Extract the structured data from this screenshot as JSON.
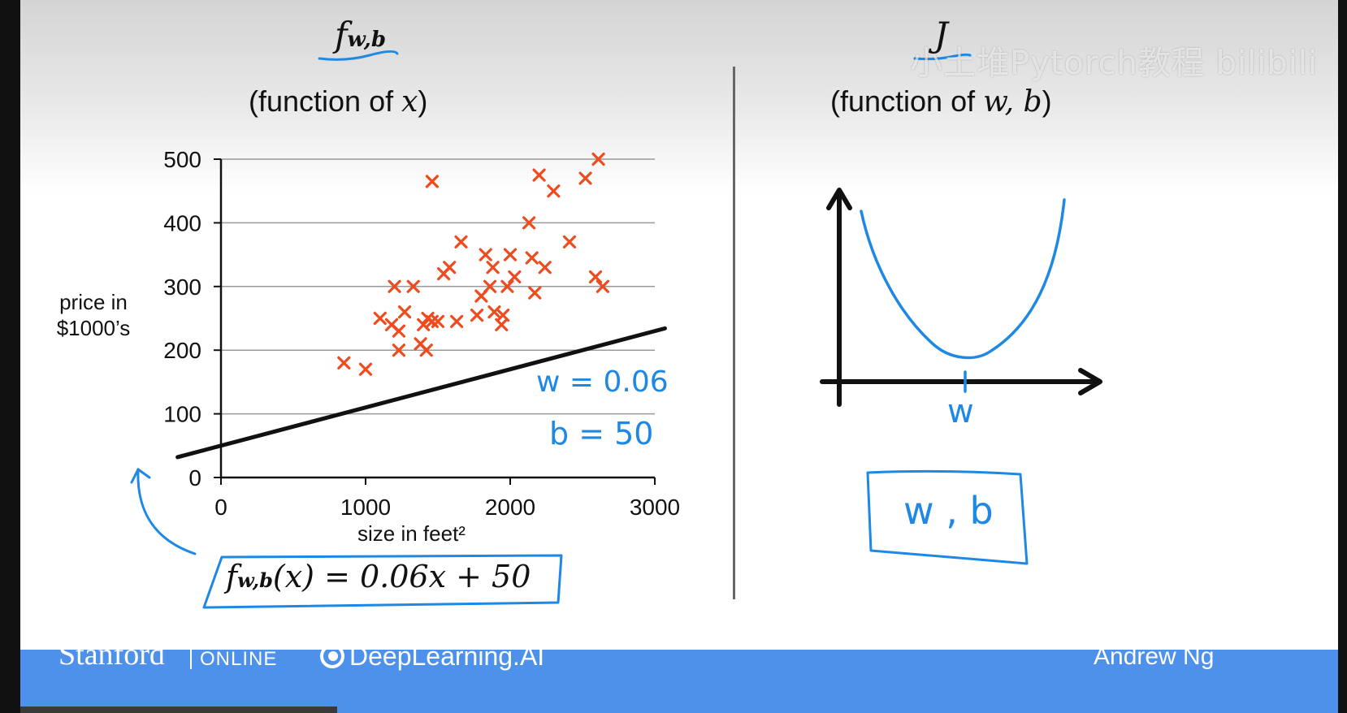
{
  "left_panel": {
    "symbol": "f",
    "symbol_sub": "w,b",
    "subtitle_prefix": "(function of ",
    "subtitle_var": "x",
    "subtitle_suffix": ")"
  },
  "right_panel": {
    "symbol": "J",
    "subtitle_prefix": "(function of ",
    "subtitle_var": "w, b",
    "subtitle_suffix": ")",
    "axis_label": "w",
    "box_text": "w , b"
  },
  "watermark": "小土堆Pytorch教程 bilibili",
  "annotations": {
    "w_value": "w = 0.06",
    "b_value": "b = 50",
    "formula_lhs_f": "f",
    "formula_lhs_sub": "w,b",
    "formula_rhs": "(x) = 0.06x + 50"
  },
  "footer": {
    "stanford": "Stanford",
    "online": "ONLINE",
    "deeplearning": "DeepLearning.AI",
    "author": "Andrew Ng"
  },
  "colors": {
    "points": "#ee4b1f",
    "line": "#111111",
    "handwriting": "#1e88e5",
    "footer": "#4d91ea"
  },
  "chart_data": {
    "type": "scatter",
    "title": "",
    "xlabel": "size in feet²",
    "ylabel": "price in $1000’s",
    "xlim": [
      0,
      3000
    ],
    "ylim": [
      0,
      500
    ],
    "xticks": [
      0,
      1000,
      2000,
      3000
    ],
    "yticks": [
      0,
      100,
      200,
      300,
      400,
      500
    ],
    "grid": "horizontal",
    "marker": "x",
    "points": [
      [
        850,
        180
      ],
      [
        1000,
        170
      ],
      [
        1100,
        250
      ],
      [
        1180,
        240
      ],
      [
        1200,
        300
      ],
      [
        1230,
        230
      ],
      [
        1230,
        200
      ],
      [
        1270,
        260
      ],
      [
        1330,
        300
      ],
      [
        1380,
        210
      ],
      [
        1420,
        200
      ],
      [
        1400,
        240
      ],
      [
        1430,
        250
      ],
      [
        1460,
        245
      ],
      [
        1500,
        245
      ],
      [
        1460,
        465
      ],
      [
        1540,
        320
      ],
      [
        1580,
        330
      ],
      [
        1630,
        245
      ],
      [
        1660,
        370
      ],
      [
        1770,
        255
      ],
      [
        1800,
        285
      ],
      [
        1830,
        350
      ],
      [
        1860,
        300
      ],
      [
        1880,
        330
      ],
      [
        1890,
        260
      ],
      [
        1940,
        240
      ],
      [
        1950,
        255
      ],
      [
        1980,
        300
      ],
      [
        2000,
        350
      ],
      [
        2030,
        315
      ],
      [
        2130,
        400
      ],
      [
        2150,
        345
      ],
      [
        2170,
        290
      ],
      [
        2200,
        475
      ],
      [
        2240,
        330
      ],
      [
        2300,
        450
      ],
      [
        2410,
        370
      ],
      [
        2520,
        470
      ],
      [
        2590,
        315
      ],
      [
        2610,
        500
      ],
      [
        2640,
        300
      ]
    ],
    "line": {
      "w": 0.06,
      "b": 50,
      "x_range": [
        -300,
        3070
      ]
    }
  },
  "cost_chart": {
    "type": "line",
    "shape": "parabola",
    "xlabel": "w",
    "ylabel": "",
    "axis_ticks": "none"
  }
}
